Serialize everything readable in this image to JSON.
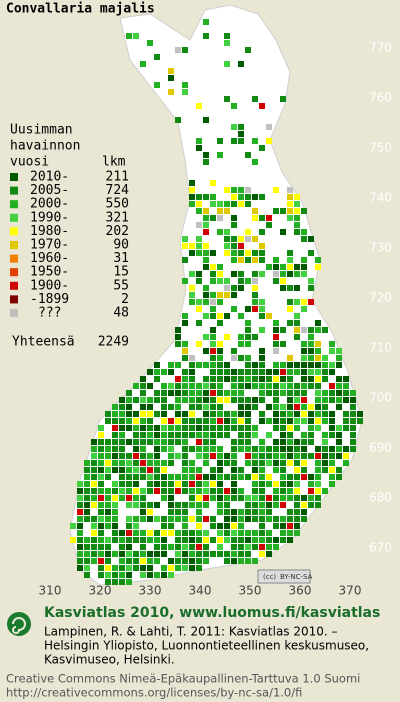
{
  "title": "Convallaria majalis",
  "legend": {
    "heading": [
      "Uusimman",
      "havainnon"
    ],
    "col_year": "vuosi",
    "col_count": "lkm",
    "rows": [
      {
        "label": "2010-",
        "count": 211,
        "color": "#005a00"
      },
      {
        "label": "2005-",
        "count": 724,
        "color": "#108a10"
      },
      {
        "label": "2000-",
        "count": 550,
        "color": "#22b022"
      },
      {
        "label": "1990-",
        "count": 321,
        "color": "#40d040"
      },
      {
        "label": "1980-",
        "count": 202,
        "color": "#ffff00"
      },
      {
        "label": "1970-",
        "count": 90,
        "color": "#e0c800"
      },
      {
        "label": "1960-",
        "count": 31,
        "color": "#f08000"
      },
      {
        "label": "1950-",
        "count": 15,
        "color": "#e04000"
      },
      {
        "label": "1900-",
        "count": 55,
        "color": "#d00000"
      },
      {
        "label": "-1899",
        "count": 2,
        "color": "#800000"
      },
      {
        "label": "???",
        "count": 48,
        "color": "#c0c0c0"
      }
    ],
    "total_label": "Yhteensä",
    "total": 2249
  },
  "map": {
    "y_labels": [
      770,
      760,
      750,
      740,
      730,
      720,
      710,
      700,
      690,
      680,
      670
    ],
    "x_labels": [
      310,
      320,
      330,
      340,
      350,
      360,
      370
    ],
    "license_badge": "BY-NC-SA"
  },
  "footer": {
    "headline": "Kasviatlas 2010, www.luomus.fi/kasviatlas",
    "citation": [
      "Lampinen, R. & Lahti, T. 2011: Kasviatlas 2010. –",
      "Helsingin Yliopisto, Luonnontieteellinen keskusmuseo,",
      "Kasvimuseo, Helsinki."
    ],
    "license": [
      "Creative Commons Nimeä-Epäkaupallinen-Tarttuva 1.0 Suomi",
      "http://creativecommons.org/licenses/by-nc-sa/1.0/fi"
    ]
  }
}
